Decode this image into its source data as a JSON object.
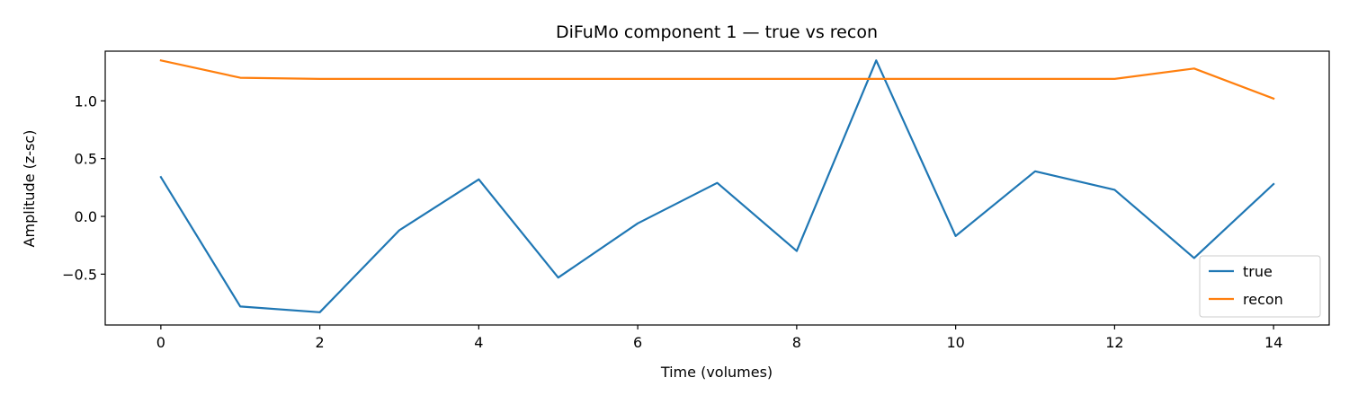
{
  "chart_data": {
    "type": "line",
    "title": "DiFuMo component 1 — true vs recon",
    "xlabel": "Time (volumes)",
    "ylabel": "Amplitude (z-sc)",
    "x": [
      0,
      1,
      2,
      3,
      4,
      5,
      6,
      7,
      8,
      9,
      10,
      11,
      12,
      13,
      14
    ],
    "xlim": [
      -0.7,
      14.7
    ],
    "ylim": [
      -0.94,
      1.43
    ],
    "xticks": [
      0,
      2,
      4,
      6,
      8,
      10,
      12,
      14
    ],
    "xtick_labels": [
      "0",
      "2",
      "4",
      "6",
      "8",
      "10",
      "12",
      "14"
    ],
    "yticks": [
      -0.5,
      0.0,
      0.5,
      1.0
    ],
    "ytick_labels": [
      "−0.5",
      "0.0",
      "0.5",
      "1.0"
    ],
    "grid": false,
    "legend_position": "lower-right",
    "series": [
      {
        "name": "true",
        "color": "#1f77b4",
        "values": [
          0.34,
          -0.78,
          -0.83,
          -0.12,
          0.32,
          -0.53,
          -0.06,
          0.29,
          -0.3,
          1.35,
          -0.17,
          0.39,
          0.23,
          -0.36,
          0.28
        ]
      },
      {
        "name": "recon",
        "color": "#ff7f0e",
        "values": [
          1.35,
          1.2,
          1.19,
          1.19,
          1.19,
          1.19,
          1.19,
          1.19,
          1.19,
          1.19,
          1.19,
          1.19,
          1.19,
          1.28,
          1.02
        ]
      }
    ]
  }
}
